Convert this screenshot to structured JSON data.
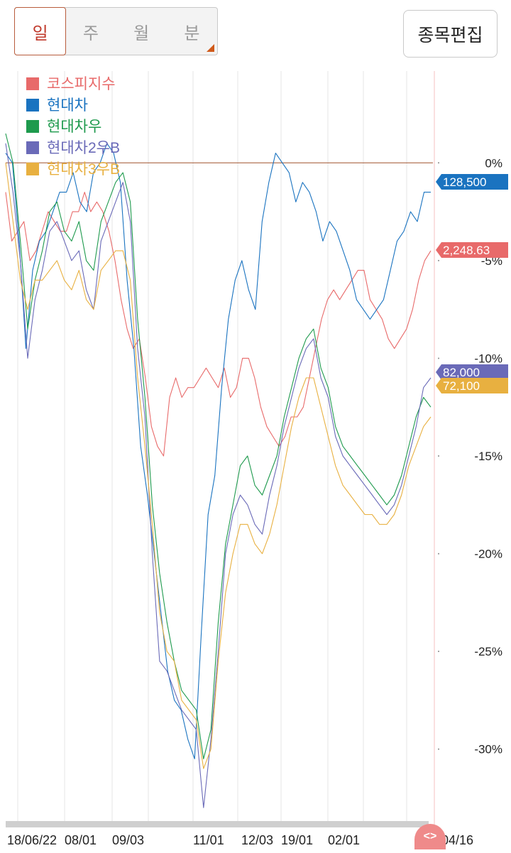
{
  "period_tabs": [
    {
      "label": "일",
      "active": true
    },
    {
      "label": "주",
      "active": false
    },
    {
      "label": "월",
      "active": false
    },
    {
      "label": "분",
      "active": false
    }
  ],
  "edit_button_label": "종목편집",
  "scroll_handle_label": "<>",
  "chart_data": {
    "type": "line",
    "legend_placement": "top-left",
    "x_tick_labels": [
      "18/06/22",
      "08/01",
      "09/03",
      "11/01",
      "12/03",
      "19/01",
      "02/01",
      "04/16"
    ],
    "y_tick_labels": [
      "0%",
      "-5%",
      "-10%",
      "-15%",
      "-20%",
      "-25%",
      "-30%"
    ],
    "y_unit": "%",
    "ylim": [
      -33.5,
      4.7
    ],
    "series": [
      {
        "name": "코스피지수",
        "color": "#e86a6a",
        "end_label": "2,248.63",
        "values": [
          -1.5,
          -4.0,
          -3.5,
          -3.0,
          -5.0,
          -4.5,
          -3.5,
          -2.5,
          -3.0,
          -3.5,
          -3.5,
          -2.5,
          -2.5,
          -1.5,
          -2.5,
          -2.0,
          -2.5,
          -3.5,
          -5.0,
          -7.0,
          -8.5,
          -9.5,
          -9.0,
          -11.0,
          -13.5,
          -14.5,
          -15.0,
          -12.0,
          -11.0,
          -12.0,
          -11.5,
          -11.5,
          -11.0,
          -10.5,
          -11.0,
          -11.5,
          -10.5,
          -12.0,
          -11.5,
          -10.0,
          -10.0,
          -11.0,
          -12.5,
          -13.5,
          -14.0,
          -14.5,
          -14.0,
          -13.0,
          -13.0,
          -12.5,
          -11.0,
          -9.5,
          -8.0,
          -7.0,
          -6.5,
          -7.0,
          -6.5,
          -6.0,
          -5.5,
          -5.5,
          -7.0,
          -7.5,
          -8.0,
          -9.0,
          -9.5,
          -9.0,
          -8.5,
          -7.5,
          -6.0,
          -5.0,
          -4.5
        ]
      },
      {
        "name": "현대차",
        "color": "#1a73c0",
        "end_label": "128,500",
        "values": [
          0.5,
          0.0,
          -4.0,
          -9.5,
          -5.5,
          -4.0,
          -3.5,
          -2.5,
          -1.5,
          -1.5,
          -0.5,
          -2.0,
          -2.5,
          -0.5,
          0.0,
          1.0,
          0.5,
          -1.0,
          -6.0,
          -9.5,
          -14.5,
          -17.0,
          -20.0,
          -23.0,
          -26.0,
          -27.5,
          -28.0,
          -29.5,
          -30.5,
          -24.0,
          -18.0,
          -16.0,
          -11.5,
          -8.0,
          -6.0,
          -5.0,
          -6.5,
          -7.5,
          -3.0,
          -1.0,
          0.5,
          0.0,
          -0.5,
          -2.0,
          -1.0,
          -1.5,
          -2.5,
          -4.0,
          -3.0,
          -3.5,
          -4.5,
          -5.5,
          -7.0,
          -7.5,
          -8.0,
          -7.5,
          -7.0,
          -5.5,
          -4.0,
          -3.5,
          -2.5,
          -3.0,
          -1.5,
          -1.5
        ]
      },
      {
        "name": "현대차우",
        "color": "#1e9a4d",
        "end_label": "",
        "values": [
          1.5,
          0.0,
          -4.0,
          -8.5,
          -6.0,
          -4.5,
          -2.5,
          -2.0,
          -3.5,
          -4.0,
          -3.0,
          -5.0,
          -5.5,
          -3.0,
          -2.0,
          -1.0,
          -0.5,
          -2.0,
          -8.0,
          -12.0,
          -17.5,
          -21.0,
          -23.5,
          -25.5,
          -27.0,
          -27.5,
          -28.0,
          -30.5,
          -29.0,
          -23.5,
          -19.5,
          -17.5,
          -15.5,
          -15.0,
          -16.5,
          -17.0,
          -16.0,
          -15.0,
          -13.0,
          -11.5,
          -10.0,
          -9.0,
          -8.5,
          -10.5,
          -11.5,
          -13.5,
          -14.5,
          -15.0,
          -15.5,
          -16.0,
          -16.5,
          -17.0,
          -17.5,
          -17.0,
          -16.0,
          -14.5,
          -13.0,
          -12.0,
          -12.5
        ]
      },
      {
        "name": "현대차2우B",
        "color": "#6a6ab8",
        "end_label": "82,000",
        "values": [
          1.0,
          -1.5,
          -5.0,
          -10.0,
          -7.0,
          -5.5,
          -3.5,
          -3.0,
          -4.0,
          -5.0,
          -4.5,
          -6.5,
          -7.5,
          -4.0,
          -3.0,
          -2.0,
          -1.0,
          -3.0,
          -9.5,
          -13.0,
          -20.0,
          -25.5,
          -26.0,
          -27.0,
          -28.0,
          -28.5,
          -29.0,
          -33.0,
          -29.5,
          -25.0,
          -20.0,
          -18.0,
          -17.0,
          -17.5,
          -18.5,
          -19.0,
          -17.0,
          -15.5,
          -13.5,
          -12.0,
          -10.5,
          -9.5,
          -9.0,
          -11.0,
          -12.0,
          -14.0,
          -15.0,
          -15.5,
          -16.0,
          -16.5,
          -17.0,
          -17.5,
          -18.0,
          -17.5,
          -16.5,
          -15.0,
          -13.5,
          -11.5,
          -11.0
        ]
      },
      {
        "name": "현대차3우B",
        "color": "#e8b040",
        "end_label": "72,100",
        "values": [
          0.0,
          -3.0,
          -6.0,
          -7.5,
          -6.0,
          -6.0,
          -5.5,
          -5.0,
          -6.0,
          -6.5,
          -5.5,
          -7.0,
          -7.5,
          -5.5,
          -5.0,
          -4.5,
          -4.5,
          -6.0,
          -11.0,
          -14.5,
          -18.5,
          -23.0,
          -25.0,
          -25.5,
          -27.5,
          -28.0,
          -28.5,
          -31.0,
          -30.0,
          -25.5,
          -22.0,
          -20.0,
          -18.5,
          -18.5,
          -19.5,
          -20.0,
          -19.0,
          -17.5,
          -15.5,
          -13.5,
          -12.0,
          -11.0,
          -11.0,
          -12.5,
          -14.0,
          -15.5,
          -16.5,
          -17.0,
          -17.5,
          -18.0,
          -18.0,
          -18.5,
          -18.5,
          -18.0,
          -17.0,
          -15.5,
          -14.5,
          -13.5,
          -13.0
        ]
      }
    ]
  }
}
